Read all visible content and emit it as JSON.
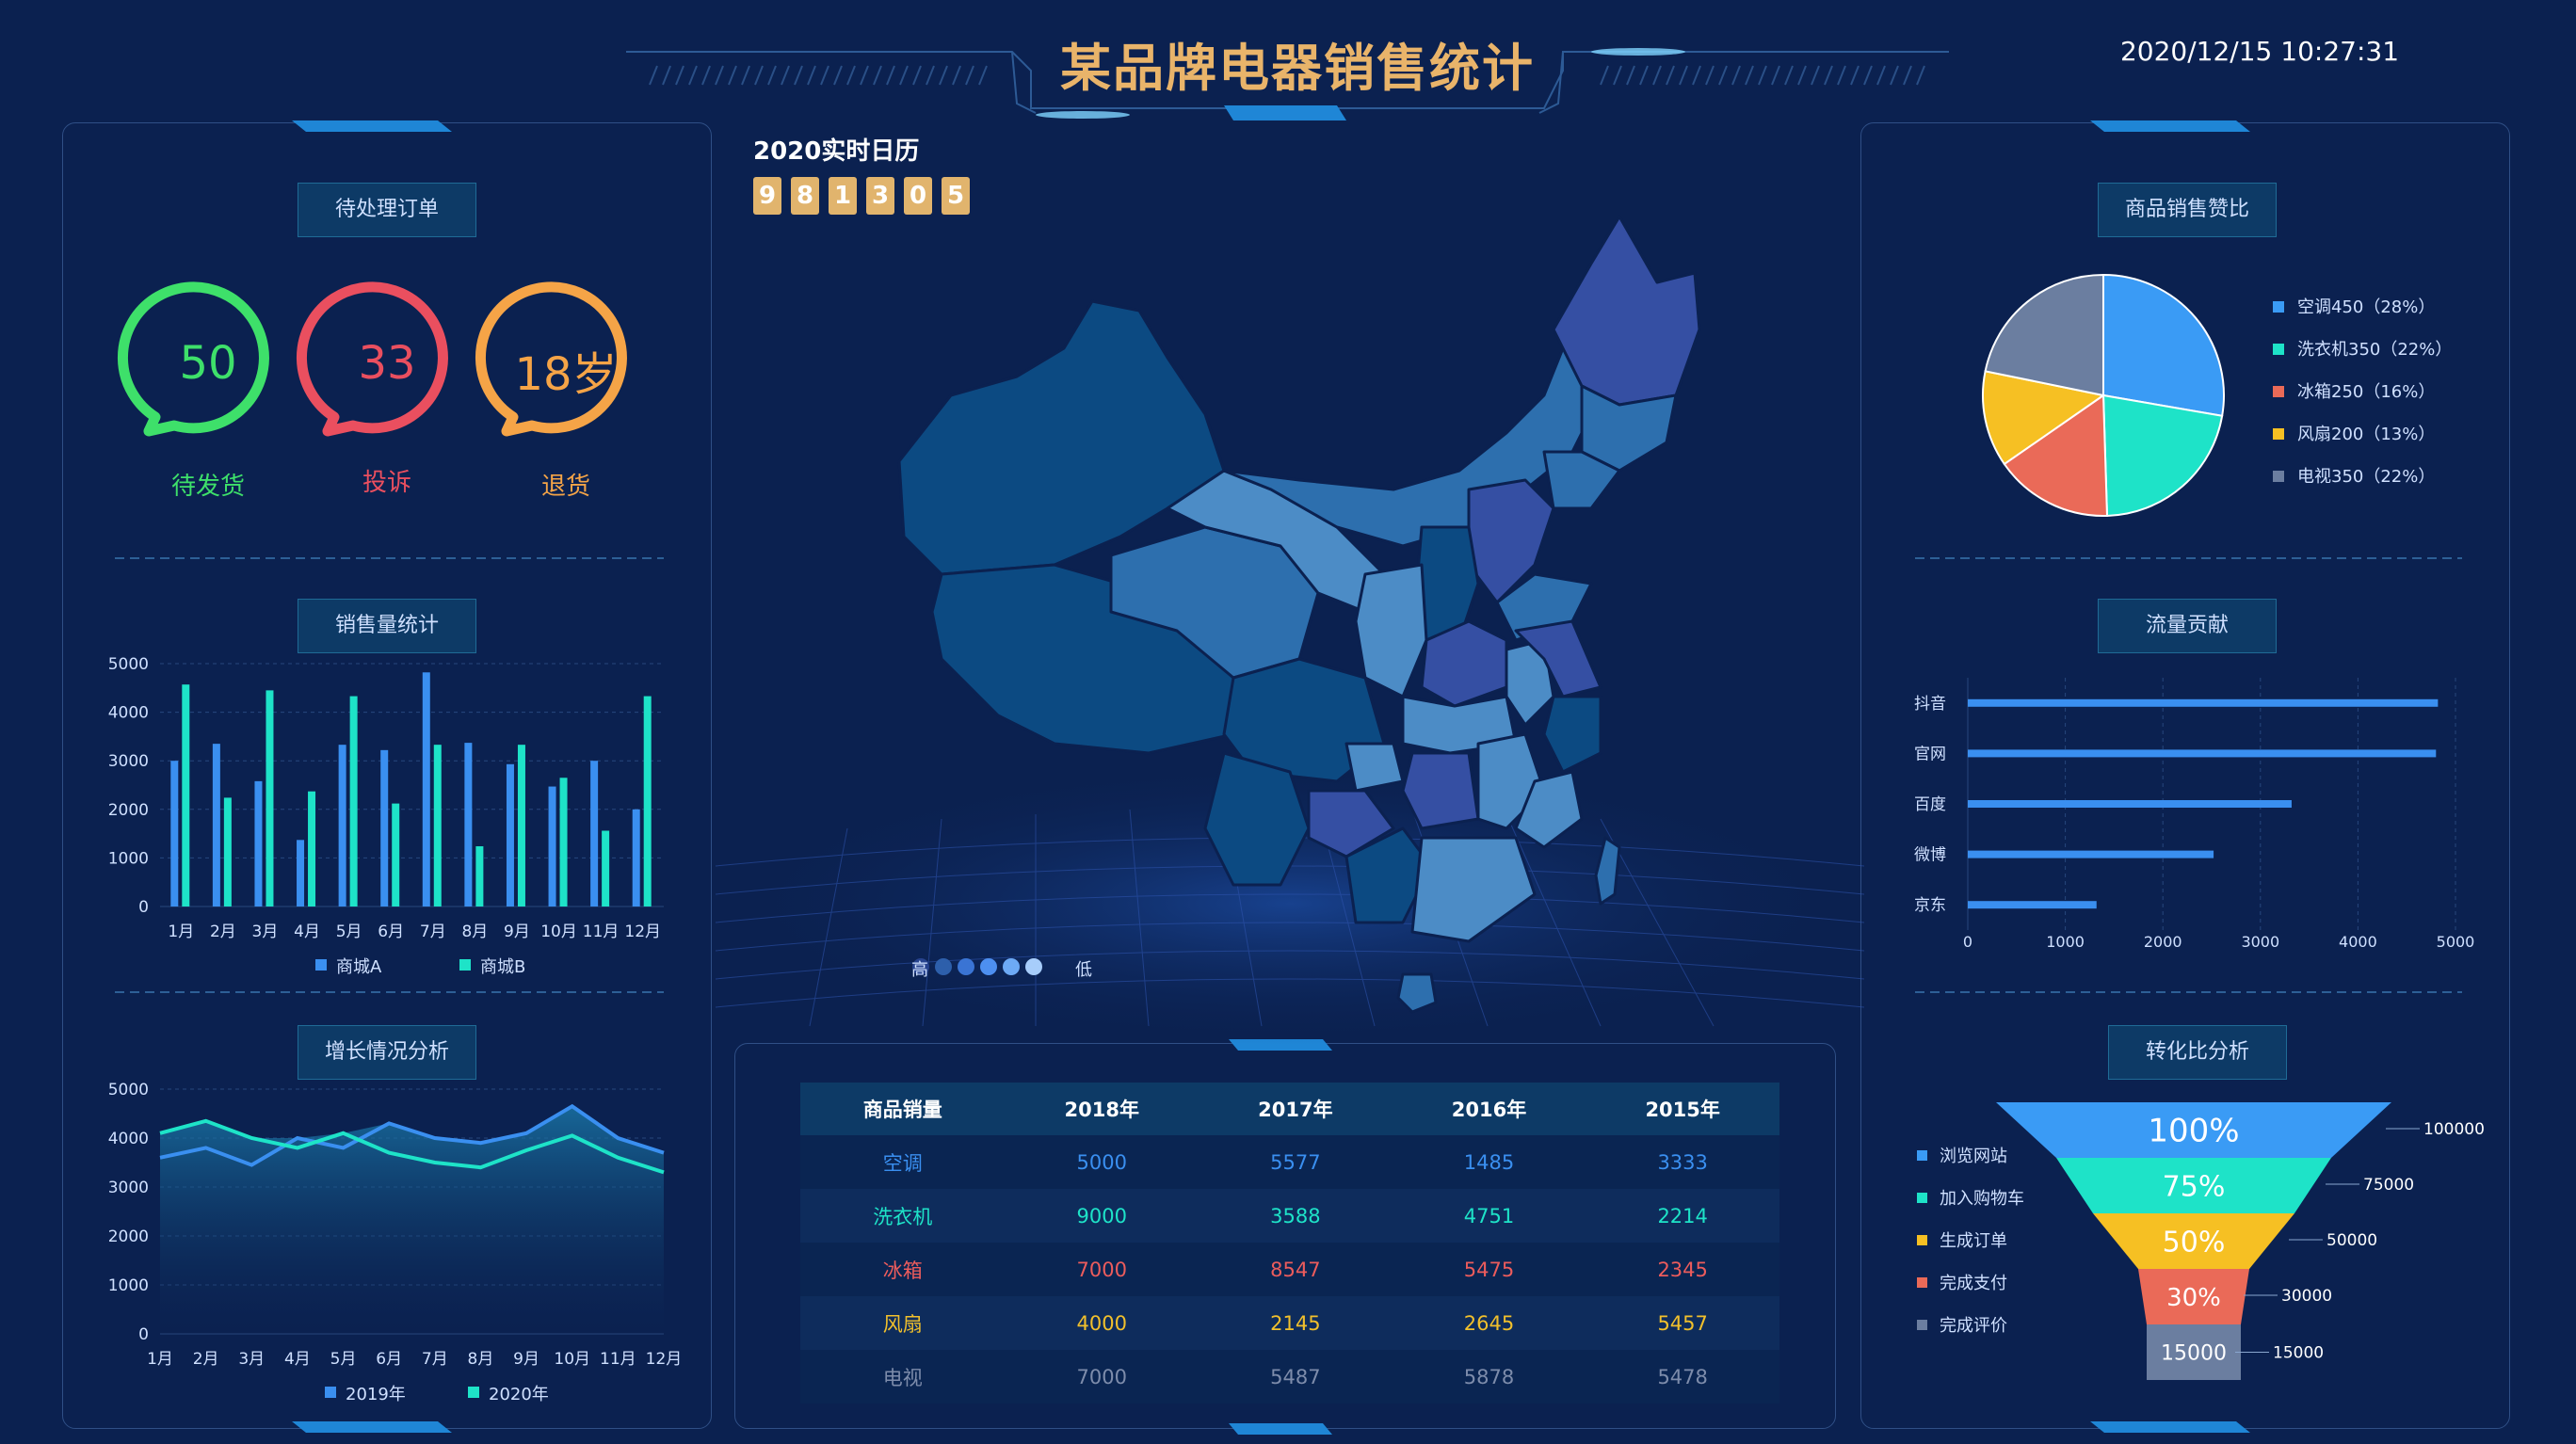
{
  "header": {
    "title": "某品牌电器销售统计",
    "datetime": "2020/12/15 10:27:31"
  },
  "calendar": {
    "label": "2020实时日历",
    "digits": [
      "9",
      "8",
      "1",
      "3",
      "0",
      "5"
    ]
  },
  "pending": {
    "title": "待处理订单",
    "items": [
      {
        "value": "50",
        "label": "待发货",
        "color": "#3ee06a"
      },
      {
        "value": "33",
        "label": "投诉",
        "color": "#ea4f5f"
      },
      {
        "value": "18岁",
        "label": "退货",
        "color": "#f5a447"
      }
    ]
  },
  "map": {
    "legend_high": "高",
    "legend_low": "低"
  },
  "table": {
    "headers": [
      "商品销量",
      "2018年",
      "2017年",
      "2016年",
      "2015年"
    ],
    "rows": [
      {
        "cells": [
          "空调",
          "5000",
          "5577",
          "1485",
          "3333"
        ],
        "color": "#3a8ff0"
      },
      {
        "cells": [
          "洗衣机",
          "9000",
          "3588",
          "4751",
          "2214"
        ],
        "color": "#1ee3c8"
      },
      {
        "cells": [
          "冰箱",
          "7000",
          "8547",
          "5475",
          "2345"
        ],
        "color": "#ec5c5c"
      },
      {
        "cells": [
          "风扇",
          "4000",
          "2145",
          "2645",
          "5457"
        ],
        "color": "#f1c02c"
      },
      {
        "cells": [
          "电视",
          "7000",
          "5487",
          "5878",
          "5478"
        ],
        "color": "#7d8cab"
      }
    ]
  },
  "chart_data": [
    {
      "id": "sales",
      "type": "bar",
      "title": "销售量统计",
      "categories": [
        "1月",
        "2月",
        "3月",
        "4月",
        "5月",
        "6月",
        "7月",
        "8月",
        "9月",
        "10月",
        "11月",
        "12月"
      ],
      "ylim": [
        0,
        5000
      ],
      "yticks": [
        "0",
        "1000",
        "2000",
        "3000",
        "4000",
        "5000"
      ],
      "series": [
        {
          "name": "商城A",
          "color": "#3a8ff0",
          "values": [
            3000,
            3350,
            2580,
            1370,
            3330,
            3220,
            4820,
            3370,
            2930,
            2470,
            3000,
            2000
          ]
        },
        {
          "name": "商城B",
          "color": "#1ee3c8",
          "values": [
            4570,
            2240,
            4450,
            2370,
            4330,
            2120,
            3330,
            1240,
            3330,
            2650,
            1560,
            4330
          ]
        }
      ],
      "legend": "bottom"
    },
    {
      "id": "growth",
      "type": "area",
      "title": "增长情况分析",
      "categories": [
        "1月",
        "2月",
        "3月",
        "4月",
        "5月",
        "6月",
        "7月",
        "8月",
        "9月",
        "10月",
        "11月",
        "12月"
      ],
      "ylim": [
        0,
        5000
      ],
      "yticks": [
        "0",
        "1000",
        "2000",
        "3000",
        "4000",
        "5000"
      ],
      "series": [
        {
          "name": "2019年",
          "color": "#3a8ff0",
          "values": [
            3600,
            3800,
            3450,
            4000,
            3800,
            4300,
            4000,
            3900,
            4100,
            4650,
            4000,
            3700
          ]
        },
        {
          "name": "2020年",
          "color": "#1ee3c8",
          "values": [
            4100,
            4350,
            4000,
            3800,
            4100,
            3700,
            3500,
            3400,
            3750,
            4050,
            3600,
            3300
          ]
        }
      ],
      "legend": "bottom"
    },
    {
      "id": "share",
      "type": "pie",
      "title": "商品销售赞比",
      "slices": [
        {
          "label": "空调450（28%）",
          "value": 28,
          "color": "#3a9bf5"
        },
        {
          "label": "洗衣机350（22%）",
          "value": 22,
          "color": "#1ee3c8"
        },
        {
          "label": "冰箱250（16%）",
          "value": 16,
          "color": "#ea6a58"
        },
        {
          "label": "风扇200（13%）",
          "value": 13,
          "color": "#f6c023"
        },
        {
          "label": "电视350（22%）",
          "value": 22,
          "color": "#6b7ea0"
        }
      ],
      "legend": "right"
    },
    {
      "id": "traffic",
      "type": "bar",
      "orientation": "horizontal",
      "title": "流量贡献",
      "categories": [
        "抖音",
        "官网",
        "百度",
        "微博",
        "京东"
      ],
      "values": [
        4820,
        4800,
        3320,
        2520,
        1320
      ],
      "xlim": [
        0,
        5000
      ],
      "xticks": [
        "0",
        "1000",
        "2000",
        "3000",
        "4000",
        "5000"
      ],
      "color": "#3a8ff0"
    },
    {
      "id": "funnel",
      "type": "funnel",
      "title": "转化比分析",
      "stages": [
        {
          "label": "浏览网站",
          "pct": "100%",
          "value": "100000",
          "color": "#3a9bf5"
        },
        {
          "label": "加入购物车",
          "pct": "75%",
          "value": "75000",
          "color": "#1ee3c8"
        },
        {
          "label": "生成订单",
          "pct": "50%",
          "value": "50000",
          "color": "#f6c023"
        },
        {
          "label": "完成支付",
          "pct": "30%",
          "value": "30000",
          "color": "#ea6a58"
        },
        {
          "label": "完成评价",
          "pct": "15000",
          "value": "15000",
          "color": "#6b7ea0"
        }
      ]
    }
  ]
}
